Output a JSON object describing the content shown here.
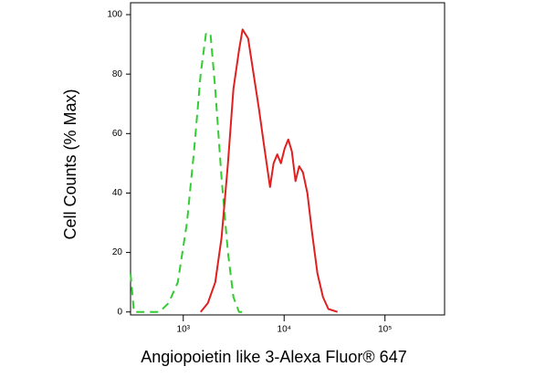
{
  "chart_data": {
    "type": "line",
    "xlabel": "Angiopoietin like 3-Alexa Fluor® 647",
    "ylabel": "Cell Counts (% Max)",
    "xscale": "log",
    "xlim": [
      300,
      390000
    ],
    "ylim": [
      -1,
      104
    ],
    "xticks": [
      {
        "value": 1000,
        "label": "10³"
      },
      {
        "value": 10000,
        "label": "10⁴"
      },
      {
        "value": 100000,
        "label": "10⁵"
      }
    ],
    "yticks": [
      0,
      20,
      40,
      60,
      80,
      100
    ],
    "series": [
      {
        "color": "#33cc33",
        "dash": true,
        "x": [
          300,
          324,
          582,
          716,
          883,
          1087,
          1284,
          1486,
          1684,
          1867,
          2075,
          2398,
          2775,
          3145,
          3566,
          4207
        ],
        "values": [
          13,
          0,
          0,
          3,
          10,
          30,
          55,
          80,
          94,
          93,
          75,
          45,
          20,
          5,
          0,
          0
        ]
      },
      {
        "color": "#e02020",
        "dash": false,
        "x": [
          1486,
          1754,
          2075,
          2398,
          2775,
          3145,
          3566,
          3873,
          4393,
          4982,
          5641,
          6383,
          7244,
          7870,
          8551,
          9290,
          10116,
          10990,
          11940,
          12970,
          14090,
          15350,
          17020,
          18880,
          21380,
          24270,
          27480,
          33810
        ],
        "values": [
          0,
          3,
          10,
          25,
          50,
          75,
          88,
          95,
          92,
          80,
          68,
          55,
          42,
          50,
          53,
          50,
          55,
          58,
          54,
          44,
          49,
          47,
          40,
          27,
          13,
          5,
          1,
          0
        ]
      }
    ]
  }
}
